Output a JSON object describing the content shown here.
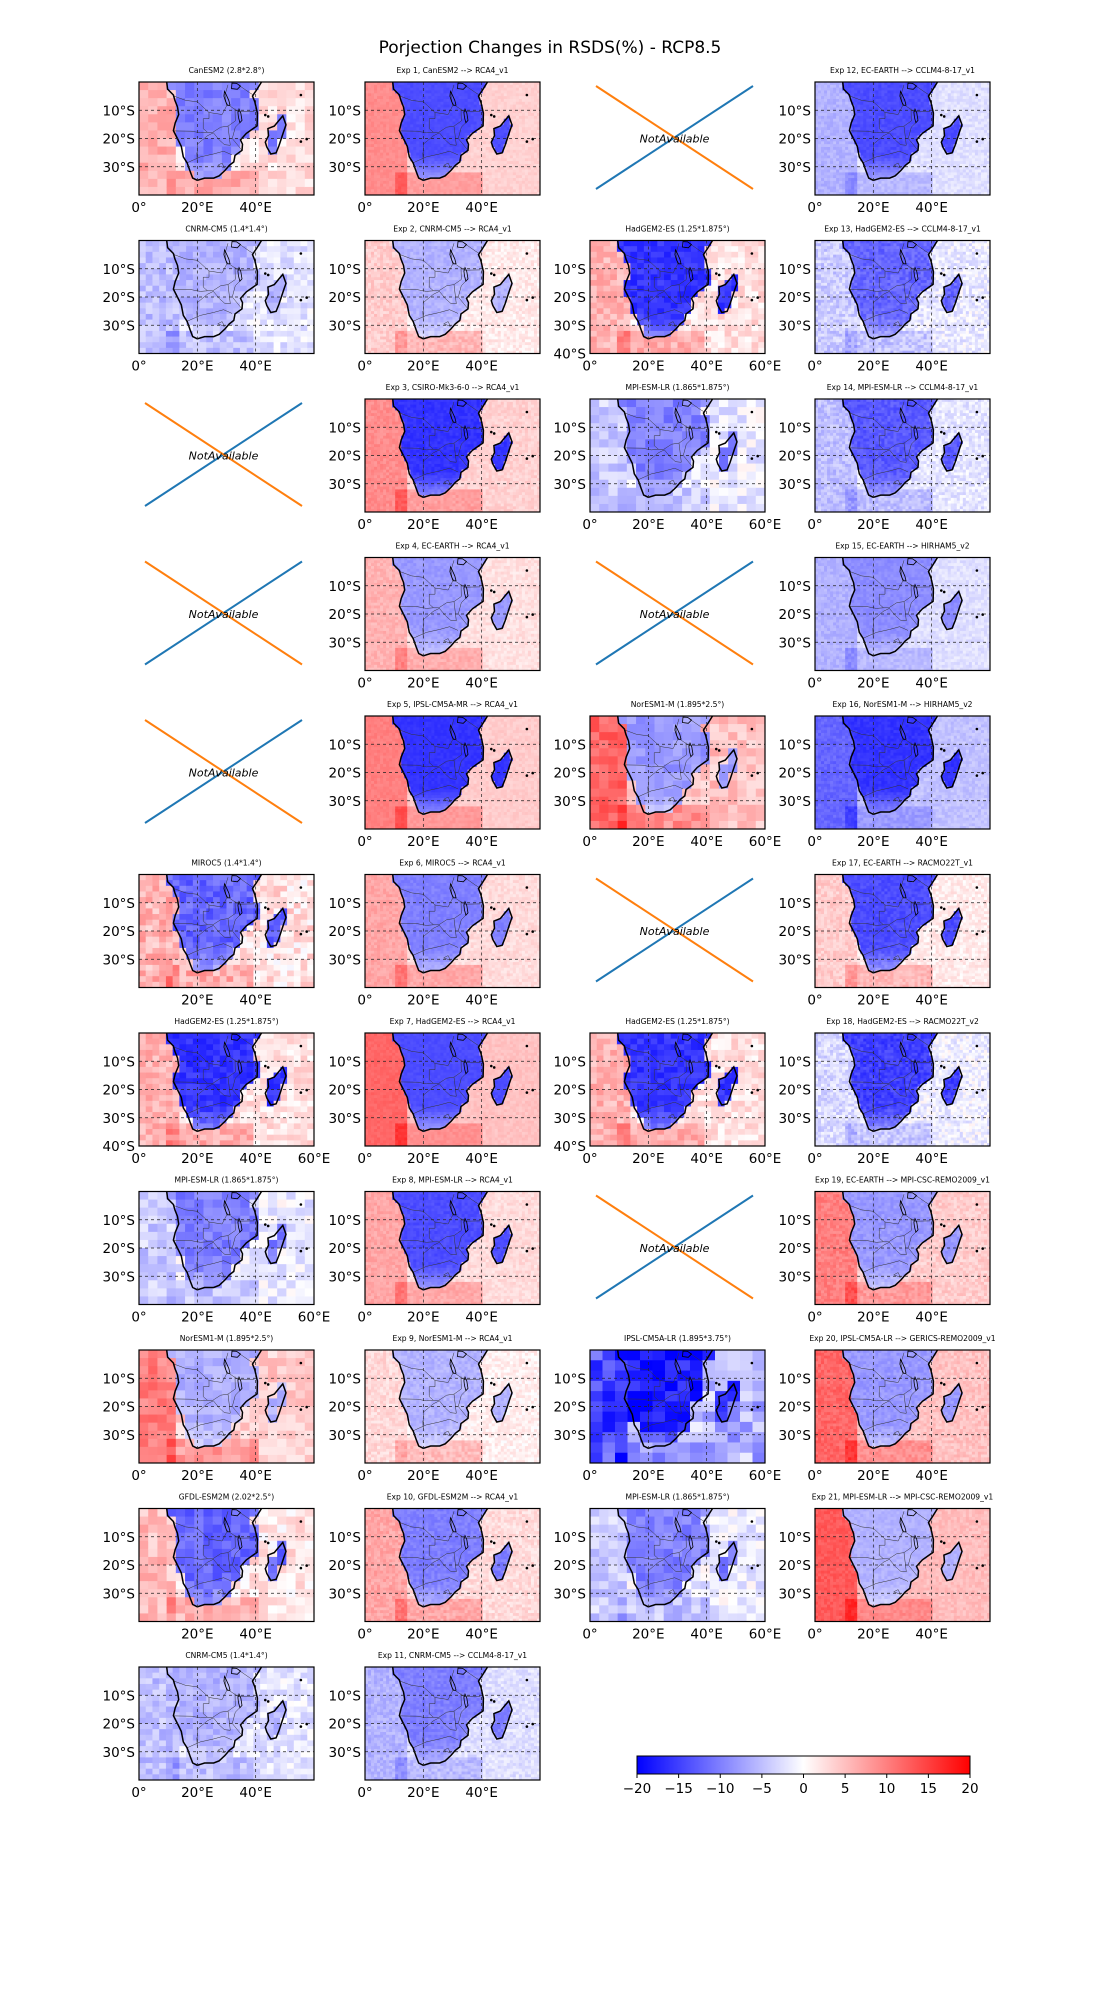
{
  "figure": {
    "title": "Porjection Changes in RSDS(%) - RCP8.5",
    "not_available_label": "NotAvailable",
    "lat_ticks": [
      "10°S",
      "20°S",
      "30°S"
    ],
    "lat_tick_40": "40°S",
    "lon_ticks": [
      "0°",
      "20°E",
      "40°E"
    ],
    "lon_tick_60": "60°E"
  },
  "colorbar": {
    "cmap": "bwr",
    "min_color": "#0000ff",
    "mid_color": "#ffffff",
    "max_color": "#ff0000",
    "range": [
      -20,
      20
    ],
    "ticks": [
      "−20",
      "−15",
      "−10",
      "−5",
      "0",
      "5",
      "10",
      "15",
      "20"
    ]
  },
  "panels": [
    {
      "row": 0,
      "col": 0,
      "title": "CanESM2 (2.8*2.8°)",
      "kind": "gcm",
      "lon_ticks": "no60",
      "lat40": false,
      "style": [
        -10,
        6,
        0.3,
        "coarse"
      ]
    },
    {
      "row": 0,
      "col": 1,
      "title": "Exp 1, CanESM2 --> RCA4_v1",
      "kind": "rcm",
      "lon_ticks": "no60",
      "lat40": false,
      "style": [
        -14,
        9,
        0.1,
        "fine"
      ]
    },
    {
      "row": 0,
      "col": 2,
      "title": "",
      "kind": "na"
    },
    {
      "row": 0,
      "col": 3,
      "title": "Exp 12, EC-EARTH --> CCLM4-8-17_v1",
      "kind": "rcm",
      "lon_ticks": "no60",
      "lat40": false,
      "style": [
        -14,
        -6,
        0.15,
        "fine"
      ]
    },
    {
      "row": 1,
      "col": 0,
      "title": "CNRM-CM5 (1.4*1.4°)",
      "kind": "gcm",
      "lon_ticks": "no60",
      "lat40": false,
      "style": [
        -6,
        -5,
        0.3,
        "mid"
      ]
    },
    {
      "row": 1,
      "col": 1,
      "title": "Exp 2, CNRM-CM5 --> RCA4_v1",
      "kind": "rcm",
      "lon_ticks": "no60",
      "lat40": false,
      "style": [
        -6,
        4,
        0.2,
        "fine"
      ]
    },
    {
      "row": 1,
      "col": 2,
      "title": "HadGEM2-ES (1.25*1.875°)",
      "kind": "gcm",
      "lon_ticks": "with60",
      "lat40": true,
      "style": [
        -16,
        6,
        0.3,
        "mid"
      ]
    },
    {
      "row": 1,
      "col": 3,
      "title": "Exp 13, HadGEM2-ES --> CCLM4-8-17_v1",
      "kind": "rcm",
      "lon_ticks": "no60",
      "lat40": false,
      "style": [
        -12,
        -4,
        0.3,
        "fine"
      ]
    },
    {
      "row": 2,
      "col": 0,
      "title": "",
      "kind": "na"
    },
    {
      "row": 2,
      "col": 1,
      "title": "Exp 3, CSIRO-Mk3-6-0 --> RCA4_v1",
      "kind": "rcm",
      "lon_ticks": "no60",
      "lat40": false,
      "style": [
        -16,
        9,
        0.15,
        "fine"
      ]
    },
    {
      "row": 2,
      "col": 2,
      "title": "MPI-ESM-LR (1.865*1.875°)",
      "kind": "gcm",
      "lon_ticks": "with60",
      "lat40": false,
      "style": [
        -10,
        -4,
        0.35,
        "coarse"
      ]
    },
    {
      "row": 2,
      "col": 3,
      "title": "Exp 14, MPI-ESM-LR --> CCLM4-8-17_v1",
      "kind": "rcm",
      "lon_ticks": "no60",
      "lat40": false,
      "style": [
        -13,
        -5,
        0.25,
        "fine"
      ]
    },
    {
      "row": 3,
      "col": 0,
      "title": "",
      "kind": "na"
    },
    {
      "row": 3,
      "col": 1,
      "title": "Exp 4, EC-EARTH --> RCA4_v1",
      "kind": "rcm",
      "lon_ticks": "no60",
      "lat40": false,
      "style": [
        -8,
        6,
        0.15,
        "fine"
      ]
    },
    {
      "row": 3,
      "col": 2,
      "title": "",
      "kind": "na"
    },
    {
      "row": 3,
      "col": 3,
      "title": "Exp 15, EC-EARTH --> HIRHAM5_v2",
      "kind": "rcm",
      "lon_ticks": "no60",
      "lat40": false,
      "style": [
        -9,
        -6,
        0.15,
        "fine"
      ]
    },
    {
      "row": 4,
      "col": 0,
      "title": "",
      "kind": "na"
    },
    {
      "row": 4,
      "col": 1,
      "title": "Exp 5, IPSL-CM5A-MR --> RCA4_v1",
      "kind": "rcm",
      "lon_ticks": "no60",
      "lat40": false,
      "style": [
        -16,
        10,
        0.1,
        "fine"
      ]
    },
    {
      "row": 4,
      "col": 2,
      "title": "NorESM1-M (1.895*2.5°)",
      "kind": "gcm",
      "lon_ticks": "with60",
      "lat40": false,
      "style": [
        -8,
        12,
        0.3,
        "coarse"
      ]
    },
    {
      "row": 4,
      "col": 3,
      "title": "Exp 16, NorESM1-M --> HIRHAM5_v2",
      "kind": "rcm",
      "lon_ticks": "no60",
      "lat40": false,
      "style": [
        -16,
        -12,
        0.15,
        "fine"
      ]
    },
    {
      "row": 5,
      "col": 0,
      "title": "MIROC5 (1.4*1.4°)",
      "kind": "gcm",
      "lon_ticks": "no0",
      "lat40": false,
      "style": [
        -12,
        6,
        0.4,
        "mid"
      ]
    },
    {
      "row": 5,
      "col": 1,
      "title": "Exp 6, MIROC5 --> RCA4_v1",
      "kind": "rcm",
      "lon_ticks": "no60",
      "lat40": false,
      "style": [
        -10,
        7,
        0.15,
        "fine"
      ]
    },
    {
      "row": 5,
      "col": 2,
      "title": "",
      "kind": "na"
    },
    {
      "row": 5,
      "col": 3,
      "title": "Exp 17, EC-EARTH --> RACMO22T_v1",
      "kind": "rcm",
      "lon_ticks": "no60",
      "lat40": false,
      "style": [
        -14,
        4,
        0.2,
        "fine"
      ]
    },
    {
      "row": 6,
      "col": 0,
      "title": "HadGEM2-ES (1.25*1.875°)",
      "kind": "gcm",
      "lon_ticks": "with60",
      "lat40": true,
      "style": [
        -16,
        6,
        0.3,
        "mid"
      ]
    },
    {
      "row": 6,
      "col": 1,
      "title": "Exp 7, HadGEM2-ES --> RCA4_v1",
      "kind": "rcm",
      "lon_ticks": "no60",
      "lat40": false,
      "style": [
        -14,
        12,
        0.1,
        "fine"
      ]
    },
    {
      "row": 6,
      "col": 2,
      "title": "HadGEM2-ES (1.25*1.875°)",
      "kind": "gcm",
      "lon_ticks": "with60",
      "lat40": true,
      "style": [
        -16,
        6,
        0.3,
        "mid"
      ]
    },
    {
      "row": 6,
      "col": 3,
      "title": "Exp 18, HadGEM2-ES --> RACMO22T_v2",
      "kind": "rcm",
      "lon_ticks": "no60",
      "lat40": false,
      "style": [
        -15,
        -3,
        0.3,
        "fine"
      ]
    },
    {
      "row": 7,
      "col": 0,
      "title": "MPI-ESM-LR (1.865*1.875°)",
      "kind": "gcm",
      "lon_ticks": "with60",
      "lat40": false,
      "style": [
        -10,
        -4,
        0.35,
        "coarse"
      ]
    },
    {
      "row": 7,
      "col": 1,
      "title": "Exp 8, MPI-ESM-LR --> RCA4_v1",
      "kind": "rcm",
      "lon_ticks": "no60",
      "lat40": false,
      "style": [
        -14,
        7,
        0.15,
        "fine"
      ]
    },
    {
      "row": 7,
      "col": 2,
      "title": "",
      "kind": "na"
    },
    {
      "row": 7,
      "col": 3,
      "title": "Exp 19, EC-EARTH --> MPI-CSC-REMO2009_v1",
      "kind": "rcm",
      "lon_ticks": "no60",
      "lat40": false,
      "style": [
        -8,
        10,
        0.2,
        "fine"
      ]
    },
    {
      "row": 8,
      "col": 0,
      "title": "NorESM1-M (1.895*2.5°)",
      "kind": "gcm",
      "lon_ticks": "no60",
      "lat40": false,
      "style": [
        -6,
        10,
        0.3,
        "coarse"
      ]
    },
    {
      "row": 8,
      "col": 1,
      "title": "Exp 9, NorESM1-M --> RCA4_v1",
      "kind": "rcm",
      "lon_ticks": "no60",
      "lat40": false,
      "style": [
        -6,
        3,
        0.2,
        "fine"
      ]
    },
    {
      "row": 8,
      "col": 2,
      "title": "IPSL-CM5A-LR (1.895*3.75°)",
      "kind": "gcm",
      "lon_ticks": "with60",
      "lat40": false,
      "style": [
        -18,
        -14,
        0.6,
        "xcoarse"
      ]
    },
    {
      "row": 8,
      "col": 3,
      "title": "Exp 20, IPSL-CM5A-LR --> GERICS-REMO2009_v1",
      "kind": "rcm",
      "lon_ticks": "no60",
      "lat40": false,
      "style": [
        -8,
        12,
        0.2,
        "fine"
      ]
    },
    {
      "row": 9,
      "col": 0,
      "title": "GFDL-ESM2M (2.02*2.5°)",
      "kind": "gcm",
      "lon_ticks": "no0",
      "lat40": false,
      "style": [
        -12,
        5,
        0.35,
        "coarse"
      ]
    },
    {
      "row": 9,
      "col": 1,
      "title": "Exp 10, GFDL-ESM2M --> RCA4_v1",
      "kind": "rcm",
      "lon_ticks": "no60",
      "lat40": false,
      "style": [
        -10,
        7,
        0.2,
        "fine"
      ]
    },
    {
      "row": 9,
      "col": 2,
      "title": "MPI-ESM-LR (1.865*1.875°)",
      "kind": "gcm",
      "lon_ticks": "with60",
      "lat40": false,
      "style": [
        -10,
        -4,
        0.35,
        "coarse"
      ]
    },
    {
      "row": 9,
      "col": 3,
      "title": "Exp 21, MPI-ESM-LR --> MPI-CSC-REMO2009_v1",
      "kind": "rcm",
      "lon_ticks": "no60",
      "lat40": false,
      "style": [
        -6,
        13,
        0.15,
        "fine"
      ]
    },
    {
      "row": 10,
      "col": 0,
      "title": "CNRM-CM5 (1.4*1.4°)",
      "kind": "gcm",
      "lon_ticks": "no60",
      "lat40": false,
      "style": [
        -6,
        -5,
        0.3,
        "mid"
      ]
    },
    {
      "row": 10,
      "col": 1,
      "title": "Exp 11, CNRM-CM5 --> CCLM4-8-17_v1",
      "kind": "rcm",
      "lon_ticks": "no60",
      "lat40": false,
      "style": [
        -10,
        -6,
        0.2,
        "fine"
      ]
    }
  ]
}
